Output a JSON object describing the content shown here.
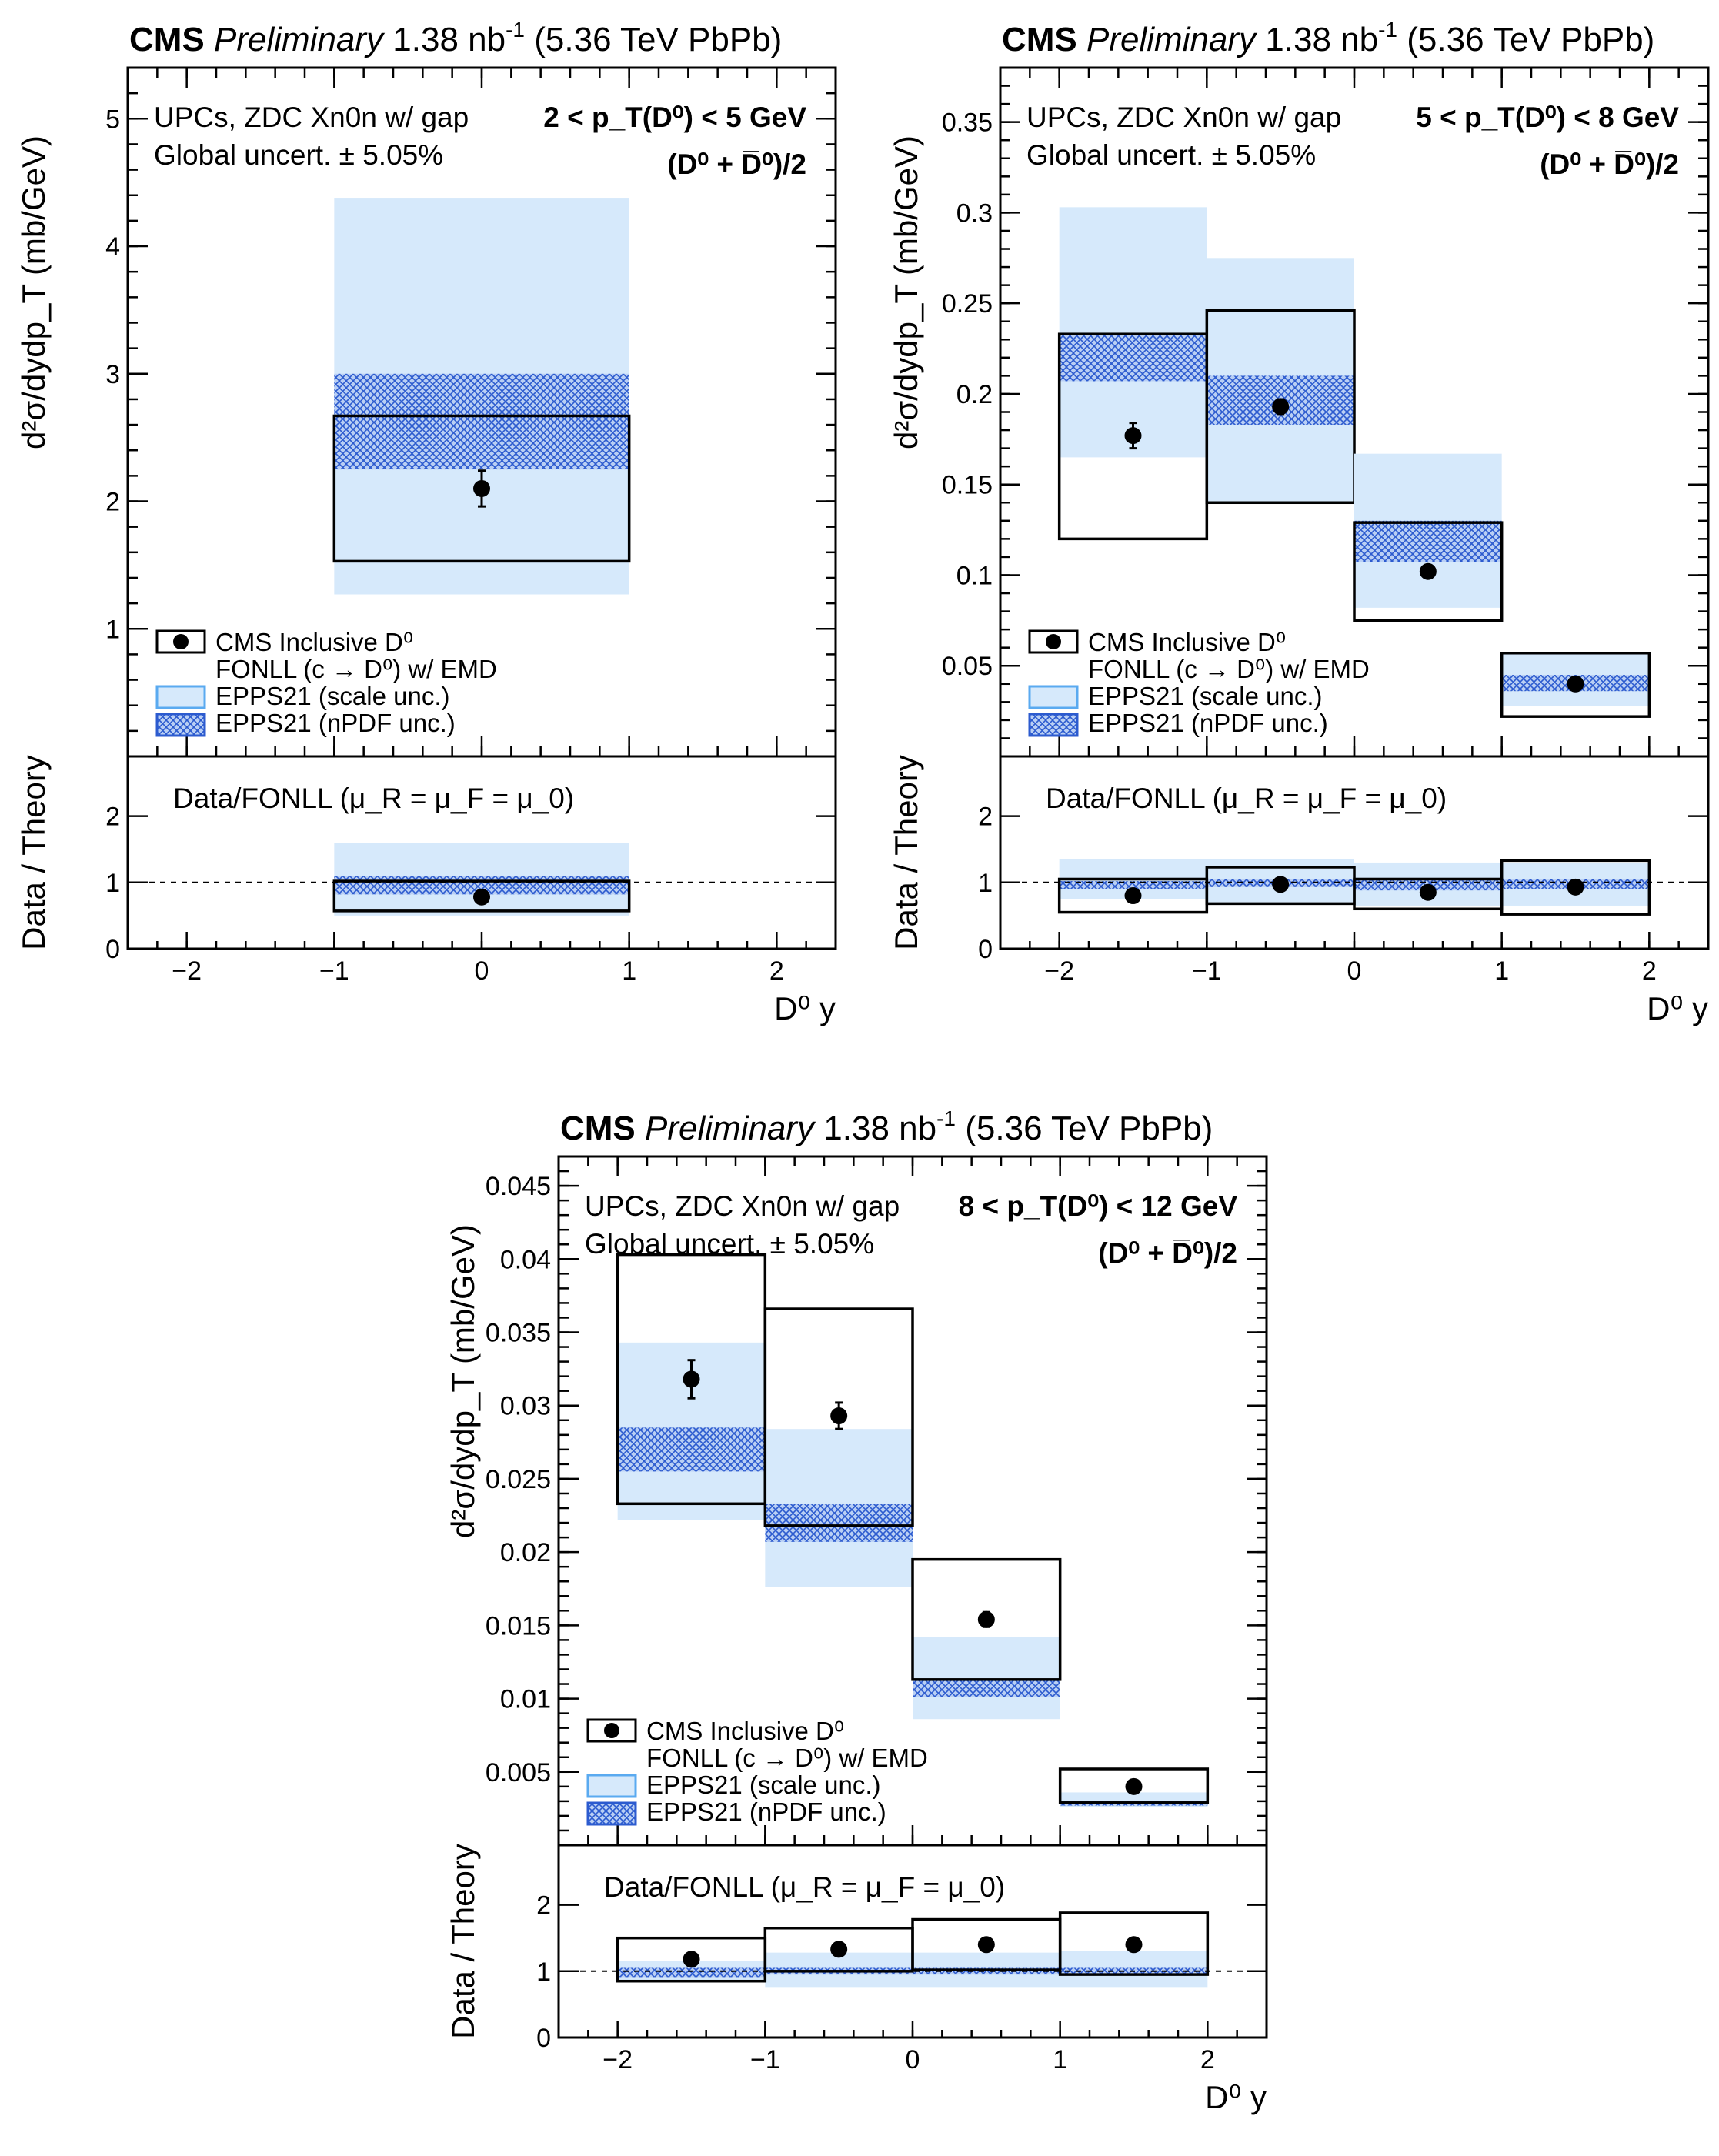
{
  "colors": {
    "scale": "#d6e9fb",
    "npdf": "#3a6fd6",
    "npdfFill": "#9db9ee",
    "scaleEdge": "#5aaaf0",
    "marker": "#000000"
  },
  "header": {
    "cms": "CMS",
    "preliminary": "Preliminary",
    "lumi": "1.38 nb",
    "lumiExp": "-1",
    "energy": "(5.36 TeV PbPb)"
  },
  "info": {
    "line1": "UPCs, ZDC Xn0n w/ gap",
    "line2": "Global uncert. ± 5.05%"
  },
  "axes": {
    "ylabel": "d²σ/dydp_T (mb/GeV)",
    "ratioLabel": "Data / Theory",
    "ratioTitle": "Data/FONLL (μ_R = μ_F = μ_0)",
    "xlabel": "D⁰ y"
  },
  "legend": {
    "data": "CMS Inclusive D⁰",
    "fonll": "FONLL (c → D⁰) w/ EMD",
    "scale": "EPPS21 (scale unc.)",
    "npdf": "EPPS21 (nPDF unc.)"
  },
  "chart_data": [
    {
      "type": "bar",
      "title": "2 < p_T(D⁰) < 5 GeV",
      "species": "(D⁰ + D̅⁰)/2",
      "xlabel": "D⁰ y",
      "ylabel": "d²σ/dydp_T (mb/GeV)",
      "xlim": [
        -2.4,
        2.4
      ],
      "ylim": [
        0,
        5.4
      ],
      "yticks": [
        1,
        2,
        3,
        4,
        5
      ],
      "ytickLabels": [
        "1",
        "2",
        "3",
        "4",
        "5"
      ],
      "xticks": [
        -2,
        -1,
        0,
        1,
        2
      ],
      "xtickLabels": [
        "−2",
        "−1",
        "0",
        "1",
        "2"
      ],
      "bins": [
        {
          "lo": -1,
          "hi": 1,
          "center": 0,
          "data": 2.1,
          "err": 0.14,
          "fonll": [
            1.53,
            2.67
          ],
          "scale": [
            1.27,
            4.38
          ],
          "npdf": [
            2.25,
            3.0
          ]
        }
      ],
      "ratio": {
        "ylim": [
          0,
          2.9
        ],
        "yticks": [
          0,
          1,
          2
        ],
        "ytickLabels": [
          "0",
          "1",
          "2"
        ],
        "bins": [
          {
            "lo": -1,
            "hi": 1,
            "center": 0,
            "data": 0.78,
            "fonll": [
              0.57,
              1.02
            ],
            "scale": [
              0.5,
              1.6
            ],
            "npdf": [
              0.82,
              1.1
            ]
          }
        ]
      }
    },
    {
      "type": "bar",
      "title": "5 < p_T(D⁰) < 8 GeV",
      "species": "(D⁰ + D̅⁰)/2",
      "xlabel": "D⁰ y",
      "ylabel": "d²σ/dydp_T (mb/GeV)",
      "xlim": [
        -2.4,
        2.4
      ],
      "ylim": [
        0,
        0.38
      ],
      "yticks": [
        0.05,
        0.1,
        0.15,
        0.2,
        0.25,
        0.3,
        0.35
      ],
      "ytickLabels": [
        "0.05",
        "0.1",
        "0.15",
        "0.2",
        "0.25",
        "0.3",
        "0.35"
      ],
      "xticks": [
        -2,
        -1,
        0,
        1,
        2
      ],
      "xtickLabels": [
        "−2",
        "−1",
        "0",
        "1",
        "2"
      ],
      "bins": [
        {
          "lo": -2,
          "hi": -1,
          "center": -1.5,
          "data": 0.177,
          "err": 0.007,
          "fonll": [
            0.12,
            0.233
          ],
          "scale": [
            0.165,
            0.303
          ],
          "npdf": [
            0.207,
            0.233
          ]
        },
        {
          "lo": -1,
          "hi": 0,
          "center": -0.5,
          "data": 0.193,
          "err": 0.004,
          "fonll": [
            0.14,
            0.246
          ],
          "scale": [
            0.14,
            0.275
          ],
          "npdf": [
            0.183,
            0.21
          ]
        },
        {
          "lo": 0,
          "hi": 1,
          "center": 0.5,
          "data": 0.102,
          "err": 0.003,
          "fonll": [
            0.075,
            0.129
          ],
          "scale": [
            0.082,
            0.167
          ],
          "npdf": [
            0.107,
            0.13
          ]
        },
        {
          "lo": 1,
          "hi": 2,
          "center": 1.5,
          "data": 0.04,
          "err": 0.002,
          "fonll": [
            0.022,
            0.057
          ],
          "scale": [
            0.028,
            0.057
          ],
          "npdf": [
            0.036,
            0.045
          ]
        }
      ],
      "ratio": {
        "ylim": [
          0,
          2.9
        ],
        "yticks": [
          0,
          1,
          2
        ],
        "ytickLabels": [
          "0",
          "1",
          "2"
        ],
        "bins": [
          {
            "lo": -2,
            "hi": -1,
            "center": -1.5,
            "data": 0.8,
            "fonll": [
              0.55,
              1.05
            ],
            "scale": [
              0.75,
              1.35
            ],
            "npdf": [
              0.9,
              1.02
            ]
          },
          {
            "lo": -1,
            "hi": 0,
            "center": -0.5,
            "data": 0.97,
            "fonll": [
              0.68,
              1.23
            ],
            "scale": [
              0.7,
              1.35
            ],
            "npdf": [
              0.93,
              1.05
            ]
          },
          {
            "lo": 0,
            "hi": 1,
            "center": 0.5,
            "data": 0.85,
            "fonll": [
              0.6,
              1.05
            ],
            "scale": [
              0.65,
              1.3
            ],
            "npdf": [
              0.88,
              1.05
            ]
          },
          {
            "lo": 1,
            "hi": 2,
            "center": 1.5,
            "data": 0.93,
            "fonll": [
              0.52,
              1.33
            ],
            "scale": [
              0.65,
              1.3
            ],
            "npdf": [
              0.9,
              1.05
            ]
          }
        ]
      }
    },
    {
      "type": "bar",
      "title": "8 < p_T(D⁰) < 12 GeV",
      "species": "(D⁰ + D̅⁰)/2",
      "xlabel": "D⁰ y",
      "ylabel": "d²σ/dydp_T (mb/GeV)",
      "xlim": [
        -2.4,
        2.4
      ],
      "ylim": [
        0,
        0.047
      ],
      "yticks": [
        0.005,
        0.01,
        0.015,
        0.02,
        0.025,
        0.03,
        0.035,
        0.04,
        0.045
      ],
      "ytickLabels": [
        "0.005",
        "0.01",
        "0.015",
        "0.02",
        "0.025",
        "0.03",
        "0.035",
        "0.04",
        "0.045"
      ],
      "xticks": [
        -2,
        -1,
        0,
        1,
        2
      ],
      "xtickLabels": [
        "−2",
        "−1",
        "0",
        "1",
        "2"
      ],
      "bins": [
        {
          "lo": -2,
          "hi": -1,
          "center": -1.5,
          "data": 0.0318,
          "err": 0.0013,
          "fonll": [
            0.0233,
            0.0403
          ],
          "scale": [
            0.0222,
            0.0343
          ],
          "npdf": [
            0.0255,
            0.0285
          ]
        },
        {
          "lo": -1,
          "hi": 0,
          "center": -0.5,
          "data": 0.0293,
          "err": 0.0009,
          "fonll": [
            0.0218,
            0.0366
          ],
          "scale": [
            0.0176,
            0.0284
          ],
          "npdf": [
            0.0207,
            0.0233
          ]
        },
        {
          "lo": 0,
          "hi": 1,
          "center": 0.5,
          "data": 0.0154,
          "err": 0.0005,
          "fonll": [
            0.0113,
            0.0195
          ],
          "scale": [
            0.0086,
            0.0142
          ],
          "npdf": [
            0.0101,
            0.0113
          ]
        },
        {
          "lo": 1,
          "hi": 2,
          "center": 1.5,
          "data": 0.004,
          "err": 0.0002,
          "fonll": [
            0.0029,
            0.0052
          ],
          "scale": [
            0.0026,
            0.0036
          ],
          "npdf": [
            0.0027,
            0.003
          ]
        }
      ],
      "ratio": {
        "ylim": [
          0,
          2.9
        ],
        "yticks": [
          0,
          1,
          2
        ],
        "ytickLabels": [
          "0",
          "1",
          "2"
        ],
        "bins": [
          {
            "lo": -2,
            "hi": -1,
            "center": -1.5,
            "data": 1.18,
            "fonll": [
              0.85,
              1.5
            ],
            "scale": [
              0.85,
              1.15
            ],
            "npdf": [
              0.9,
              1.05
            ]
          },
          {
            "lo": -1,
            "hi": 0,
            "center": -0.5,
            "data": 1.33,
            "fonll": [
              1.0,
              1.65
            ],
            "scale": [
              0.75,
              1.28
            ],
            "npdf": [
              0.95,
              1.05
            ]
          },
          {
            "lo": 0,
            "hi": 1,
            "center": 0.5,
            "data": 1.4,
            "fonll": [
              1.02,
              1.78
            ],
            "scale": [
              0.75,
              1.28
            ],
            "npdf": [
              0.95,
              1.05
            ]
          },
          {
            "lo": 1,
            "hi": 2,
            "center": 1.5,
            "data": 1.4,
            "fonll": [
              0.95,
              1.88
            ],
            "scale": [
              0.75,
              1.3
            ],
            "npdf": [
              0.95,
              1.05
            ]
          }
        ]
      }
    }
  ]
}
